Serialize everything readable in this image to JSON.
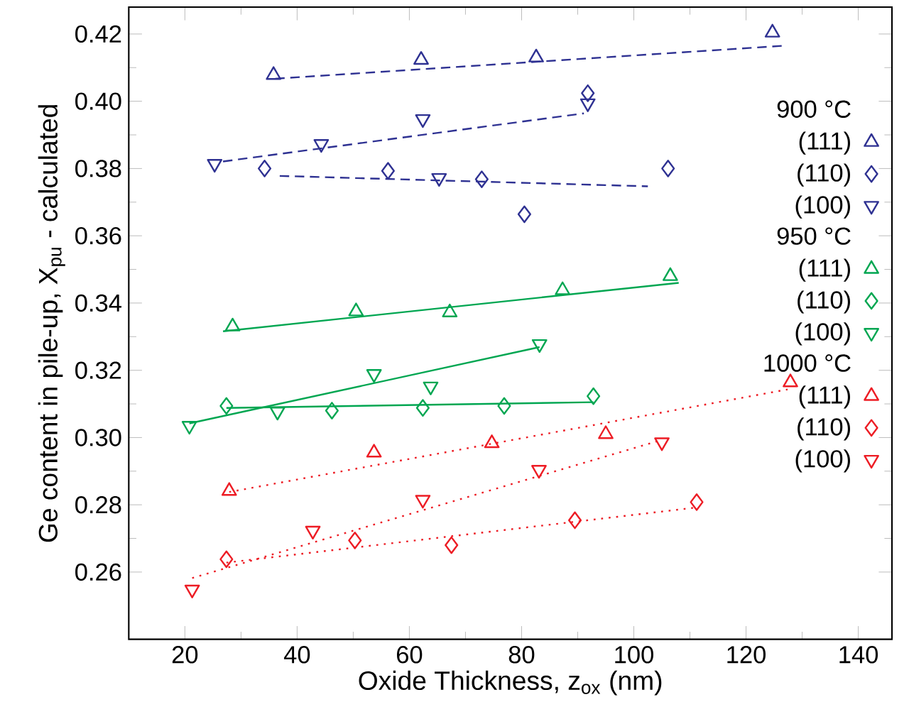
{
  "chart_data": {
    "type": "scatter",
    "xlabel": "Oxide Thickness, z$_{ox}$ (nm)",
    "ylabel": "Ge content in pile-up, X$_{pu}$ - calculated",
    "annotations": [
      "900 °C",
      "950 °C",
      "1000 °C"
    ],
    "xlim": [
      10,
      146
    ],
    "ylim": [
      0.24,
      0.428
    ],
    "xticks": [
      20,
      40,
      60,
      80,
      100,
      120,
      140
    ],
    "yticks": [
      {
        "value": 0.26,
        "label": "0.26"
      },
      {
        "value": 0.28,
        "label": "0.28"
      },
      {
        "value": 0.3,
        "label": "0.30"
      },
      {
        "value": 0.32,
        "label": "0.32"
      },
      {
        "value": 0.34,
        "label": "0.34"
      },
      {
        "value": 0.36,
        "label": "0.36"
      },
      {
        "value": 0.38,
        "label": "0.38"
      },
      {
        "value": 0.4,
        "label": "0.40"
      },
      {
        "value": 0.42,
        "label": "0.42"
      }
    ],
    "legend": "right",
    "grid": false,
    "series": [
      {
        "name": "(111)",
        "color": "#2e3192",
        "marker": "triangle",
        "x": [
          35.8,
          62.1,
          82.6,
          124.7
        ],
        "values": [
          0.4078,
          0.4123,
          0.413,
          0.4204
        ]
      },
      {
        "name": "(110)",
        "color": "#2e3192",
        "marker": "diamond",
        "x": [
          34.2,
          56.2,
          72.9,
          80.5,
          91.8,
          106.1
        ],
        "values": [
          0.38,
          0.3793,
          0.3768,
          0.3664,
          0.4024,
          0.38
        ]
      },
      {
        "name": "(100)",
        "color": "#2e3192",
        "marker": "triangle-down",
        "x": [
          25.3,
          44.3,
          62.4,
          65.3,
          91.8
        ],
        "values": [
          0.3814,
          0.3873,
          0.3947,
          0.3772,
          0.3994
        ]
      },
      {
        "name": "(111)",
        "color": "#00a651",
        "marker": "triangle",
        "x": [
          28.5,
          50.5,
          67.2,
          87.3,
          106.5
        ],
        "values": [
          0.333,
          0.3375,
          0.3372,
          0.3438,
          0.348
        ]
      },
      {
        "name": "(110)",
        "color": "#00a651",
        "marker": "diamond",
        "x": [
          27.4,
          46.2,
          62.4,
          76.9,
          92.8
        ],
        "values": [
          0.3094,
          0.308,
          0.3088,
          0.3094,
          0.3123
        ]
      },
      {
        "name": "(100)",
        "color": "#00a651",
        "marker": "triangle-down",
        "x": [
          20.8,
          36.5,
          53.7,
          63.8,
          83.2
        ],
        "values": [
          0.3035,
          0.3077,
          0.3189,
          0.3152,
          0.3278
        ]
      },
      {
        "name": "(111)",
        "color": "#ed1c24",
        "marker": "triangle",
        "x": [
          27.9,
          53.7,
          74.7,
          95.0,
          127.9
        ],
        "values": [
          0.2841,
          0.2955,
          0.2983,
          0.301,
          0.3164
        ]
      },
      {
        "name": "(110)",
        "color": "#ed1c24",
        "marker": "diamond",
        "x": [
          27.4,
          50.3,
          67.5,
          89.5,
          111.2
        ],
        "values": [
          0.2638,
          0.2694,
          0.268,
          0.2754,
          0.2808
        ]
      },
      {
        "name": "(100)",
        "color": "#ed1c24",
        "marker": "triangle-down",
        "x": [
          21.3,
          42.8,
          62.4,
          83.1,
          105.0
        ],
        "values": [
          0.2548,
          0.2723,
          0.2815,
          0.2904,
          0.2986
        ]
      },
      {
        "type": "line",
        "color": "#2e3192",
        "line_style": "dashed",
        "marker": "none",
        "x": [
          36.1,
          126.6
        ],
        "values": [
          0.4067,
          0.4165
        ]
      },
      {
        "type": "line",
        "color": "#2e3192",
        "line_style": "dashed",
        "marker": "none",
        "x": [
          36.9,
          102.5
        ],
        "values": [
          0.3778,
          0.3747
        ]
      },
      {
        "type": "line",
        "color": "#2e3192",
        "line_style": "dashed",
        "marker": "none",
        "x": [
          26.8,
          91.1
        ],
        "values": [
          0.3821,
          0.3964
        ]
      },
      {
        "type": "line",
        "color": "#00a651",
        "line_style": "solid",
        "marker": "none",
        "x": [
          26.8,
          108.0
        ],
        "values": [
          0.3316,
          0.346
        ]
      },
      {
        "type": "line",
        "color": "#00a651",
        "line_style": "solid",
        "marker": "none",
        "x": [
          27.4,
          92.8
        ],
        "values": [
          0.3088,
          0.3105
        ]
      },
      {
        "type": "line",
        "color": "#00a651",
        "line_style": "solid",
        "marker": "none",
        "x": [
          20.8,
          83.2
        ],
        "values": [
          0.3042,
          0.3269
        ]
      },
      {
        "type": "line",
        "color": "#ed1c24",
        "line_style": "dotted",
        "marker": "none",
        "x": [
          27.9,
          127.4
        ],
        "values": [
          0.2838,
          0.3143
        ]
      },
      {
        "type": "line",
        "color": "#ed1c24",
        "line_style": "dotted",
        "marker": "none",
        "x": [
          27.4,
          111.2
        ],
        "values": [
          0.2628,
          0.2792
        ]
      },
      {
        "type": "line",
        "color": "#ed1c24",
        "line_style": "dotted",
        "marker": "none",
        "x": [
          21.3,
          105.0
        ],
        "values": [
          0.2582,
          0.2993
        ]
      }
    ]
  }
}
